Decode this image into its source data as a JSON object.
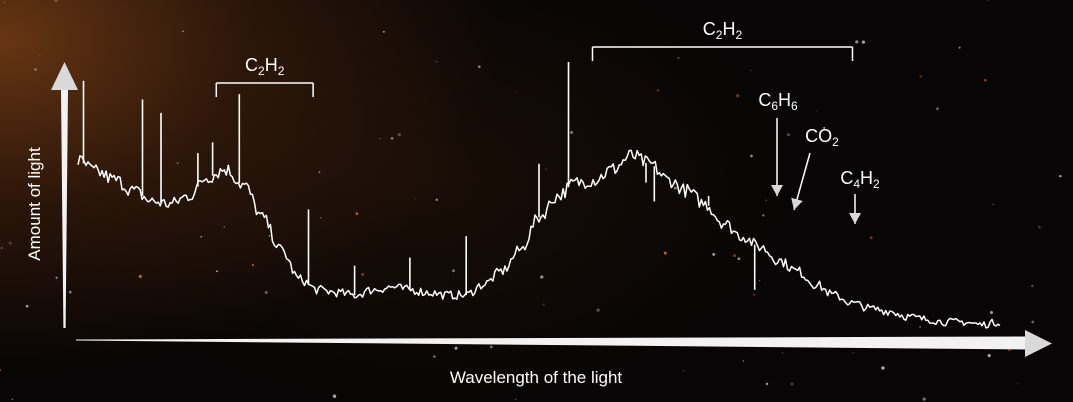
{
  "chart_data": {
    "type": "line",
    "title": "",
    "xlabel": "Wavelength of the light",
    "ylabel": "Amount of light",
    "grid": false,
    "legend": "none",
    "line_color": "#ffffff",
    "series": [
      {
        "x": [
          0,
          0.02,
          0.04,
          0.06,
          0.08,
          0.1,
          0.12,
          0.14,
          0.16,
          0.18,
          0.2,
          0.22,
          0.24,
          0.26,
          0.28,
          0.3,
          0.32,
          0.34,
          0.36,
          0.38,
          0.4,
          0.42,
          0.44,
          0.46,
          0.48,
          0.5,
          0.52,
          0.54,
          0.56,
          0.58,
          0.6,
          0.62,
          0.64,
          0.66,
          0.68,
          0.7,
          0.72,
          0.74,
          0.76,
          0.78,
          0.8,
          0.82,
          0.84,
          0.86,
          0.88,
          0.9,
          0.92,
          0.94,
          0.96,
          0.98,
          1.0
        ],
        "y": [
          0.63,
          0.59,
          0.56,
          0.52,
          0.48,
          0.47,
          0.5,
          0.57,
          0.6,
          0.54,
          0.42,
          0.3,
          0.19,
          0.15,
          0.14,
          0.13,
          0.15,
          0.16,
          0.15,
          0.14,
          0.13,
          0.13,
          0.17,
          0.22,
          0.3,
          0.42,
          0.5,
          0.55,
          0.56,
          0.6,
          0.65,
          0.62,
          0.56,
          0.52,
          0.47,
          0.4,
          0.35,
          0.31,
          0.26,
          0.22,
          0.17,
          0.13,
          0.1,
          0.08,
          0.07,
          0.05,
          0.04,
          0.03,
          0.03,
          0.02,
          0.03
        ]
      }
    ],
    "peaks": [
      {
        "x": 0.006,
        "y": 0.93
      },
      {
        "x": 0.07,
        "y": 0.86
      },
      {
        "x": 0.09,
        "y": 0.81
      },
      {
        "x": 0.13,
        "y": 0.66
      },
      {
        "x": 0.146,
        "y": 0.7
      },
      {
        "x": 0.175,
        "y": 0.88
      },
      {
        "x": 0.25,
        "y": 0.45
      },
      {
        "x": 0.3,
        "y": 0.24
      },
      {
        "x": 0.36,
        "y": 0.27
      },
      {
        "x": 0.421,
        "y": 0.35
      },
      {
        "x": 0.5,
        "y": 0.62
      },
      {
        "x": 0.532,
        "y": 1.0
      },
      {
        "x": 0.616,
        "y": 0.55
      },
      {
        "x": 0.625,
        "y": 0.48
      },
      {
        "x": 0.684,
        "y": 0.5
      },
      {
        "x": 0.734,
        "y": 0.15
      }
    ],
    "annotations": [
      {
        "type": "bracket",
        "label": "C",
        "sub": "2",
        "label2": "H",
        "sub2": "2",
        "x_start": 0.15,
        "x_end": 0.255
      },
      {
        "type": "bracket",
        "label": "C",
        "sub": "2",
        "label2": "H",
        "sub2": "2",
        "x_start": 0.558,
        "x_end": 0.84
      },
      {
        "type": "arrow",
        "label": "C",
        "sub": "6",
        "label2": "H",
        "sub2": "6",
        "x": 0.6235
      },
      {
        "type": "arrow",
        "label": "CO",
        "sub": "2",
        "label2": "",
        "sub2": "",
        "x": 0.65
      },
      {
        "type": "arrow",
        "label": "C",
        "sub": "4",
        "label2": "H",
        "sub2": "2",
        "x": 0.686
      }
    ]
  }
}
